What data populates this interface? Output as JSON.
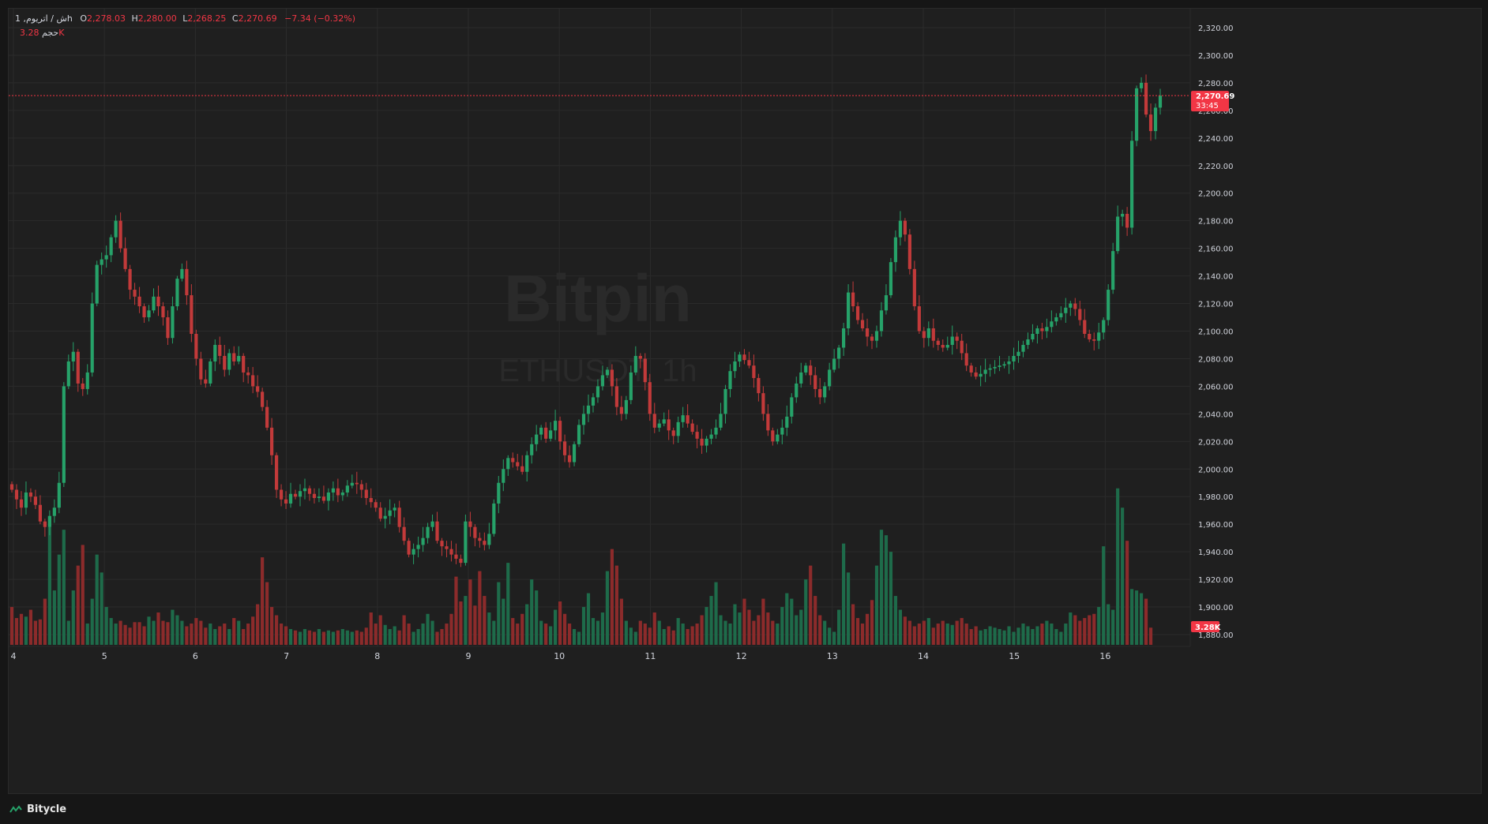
{
  "legend": {
    "symbol_interval": "1 ,ش / اتریومh",
    "open_label": "O",
    "open": "2,278.03",
    "high_label": "H",
    "high": "2,280.00",
    "low_label": "L",
    "low": "2,268.25",
    "close_label": "C",
    "close": "2,270.69",
    "change": "−7.34 (−0.32%)",
    "volume_label": "حجم",
    "volume": "3.28K"
  },
  "watermark": {
    "brand": "Bitpin",
    "symbol": "ETHUSDT, 1h"
  },
  "price_tag": {
    "price": "2,270.69",
    "countdown": "33:45"
  },
  "volume_tag": "3.28K",
  "footer": {
    "brand": "Bitycle"
  },
  "colors": {
    "up": "#26a269",
    "down": "#c23a3a",
    "up_vol": "#1e6b4a",
    "down_vol": "#8c2b2b",
    "tag": "#f23645",
    "grid": "#2b2b2b",
    "text": "#d1d4dc"
  },
  "chart_data": {
    "type": "candlestick",
    "symbol": "ETHUSDT",
    "interval": "1h",
    "y_ticks": [
      "2,320.00",
      "2,300.00",
      "2,280.00",
      "2,260.00",
      "2,240.00",
      "2,220.00",
      "2,200.00",
      "2,180.00",
      "2,160.00",
      "2,140.00",
      "2,120.00",
      "2,100.00",
      "2,080.00",
      "2,060.00",
      "2,040.00",
      "2,020.00",
      "2,000.00",
      "1,980.00",
      "1,960.00",
      "1,940.00",
      "1,920.00",
      "1,900.00",
      "1,880.00"
    ],
    "ylim": [
      1872,
      2330
    ],
    "x_ticks": [
      "4",
      "5",
      "6",
      "7",
      "8",
      "9",
      "10",
      "11",
      "12",
      "13",
      "14",
      "15",
      "16"
    ],
    "grid": true,
    "last_price": 2270.69,
    "closes": [
      1985,
      1978,
      1972,
      1983,
      1980,
      1974,
      1962,
      1958,
      1966,
      1972,
      1990,
      2060,
      2078,
      2085,
      2062,
      2058,
      2070,
      2120,
      2148,
      2152,
      2155,
      2168,
      2180,
      2160,
      2145,
      2130,
      2125,
      2118,
      2110,
      2115,
      2125,
      2118,
      2110,
      2095,
      2118,
      2138,
      2145,
      2126,
      2098,
      2080,
      2065,
      2062,
      2078,
      2090,
      2082,
      2072,
      2084,
      2078,
      2082,
      2070,
      2068,
      2060,
      2056,
      2045,
      2030,
      2010,
      1985,
      1978,
      1975,
      1982,
      1980,
      1984,
      1986,
      1982,
      1979,
      1980,
      1977,
      1983,
      1986,
      1981,
      1983,
      1988,
      1990,
      1989,
      1985,
      1979,
      1976,
      1972,
      1964,
      1966,
      1970,
      1972,
      1958,
      1948,
      1938,
      1942,
      1945,
      1950,
      1958,
      1962,
      1948,
      1944,
      1942,
      1938,
      1935,
      1932,
      1962,
      1958,
      1950,
      1948,
      1945,
      1953,
      1975,
      1990,
      2000,
      2008,
      2005,
      2002,
      1998,
      2010,
      2018,
      2025,
      2030,
      2022,
      2028,
      2035,
      2020,
      2010,
      2005,
      2018,
      2032,
      2040,
      2046,
      2052,
      2060,
      2068,
      2072,
      2060,
      2045,
      2040,
      2050,
      2070,
      2082,
      2080,
      2063,
      2040,
      2030,
      2033,
      2036,
      2028,
      2024,
      2034,
      2039,
      2033,
      2027,
      2022,
      2017,
      2022,
      2025,
      2030,
      2040,
      2058,
      2071,
      2078,
      2083,
      2079,
      2075,
      2066,
      2055,
      2040,
      2028,
      2020,
      2025,
      2030,
      2038,
      2052,
      2062,
      2070,
      2075,
      2068,
      2058,
      2052,
      2060,
      2072,
      2080,
      2088,
      2102,
      2128,
      2118,
      2108,
      2102,
      2096,
      2093,
      2100,
      2115,
      2126,
      2150,
      2168,
      2180,
      2170,
      2145,
      2118,
      2100,
      2095,
      2102,
      2093,
      2090,
      2088,
      2090,
      2096,
      2093,
      2084,
      2075,
      2070,
      2067,
      2069,
      2072,
      2073,
      2074,
      2075,
      2076,
      2078,
      2082,
      2085,
      2090,
      2094,
      2098,
      2102,
      2100,
      2103,
      2107,
      2110,
      2113,
      2117,
      2120,
      2116,
      2108,
      2098,
      2094,
      2093,
      2099,
      2108,
      2130,
      2158,
      2183,
      2185,
      2175,
      2238,
      2276,
      2280,
      2257,
      2245,
      2262,
      2270.69
    ],
    "volumes": [
      1900,
      1892,
      1895,
      1893,
      1898,
      1890,
      1891,
      1906,
      1958,
      1912,
      1938,
      1956,
      1890,
      1912,
      1930,
      1945,
      1888,
      1906,
      1938,
      1925,
      1900,
      1892,
      1888,
      1890,
      1887,
      1885,
      1889,
      1889,
      1886,
      1893,
      1890,
      1896,
      1890,
      1889,
      1898,
      1894,
      1890,
      1886,
      1888,
      1892,
      1890,
      1885,
      1888,
      1884,
      1886,
      1888,
      1884,
      1892,
      1890,
      1884,
      1888,
      1893,
      1902,
      1936,
      1918,
      1900,
      1894,
      1888,
      1886,
      1884,
      1883,
      1882,
      1884,
      1883,
      1882,
      1884,
      1882,
      1883,
      1882,
      1883,
      1884,
      1883,
      1882,
      1883,
      1882,
      1885,
      1896,
      1888,
      1894,
      1887,
      1884,
      1886,
      1883,
      1894,
      1888,
      1882,
      1884,
      1888,
      1895,
      1890,
      1882,
      1884,
      1888,
      1895,
      1922,
      1904,
      1908,
      1920,
      1901,
      1926,
      1908,
      1896,
      1890,
      1918,
      1906,
      1932,
      1892,
      1888,
      1895,
      1902,
      1920,
      1912,
      1890,
      1888,
      1886,
      1898,
      1904,
      1895,
      1888,
      1884,
      1882,
      1900,
      1910,
      1892,
      1890,
      1896,
      1926,
      1942,
      1930,
      1906,
      1890,
      1885,
      1882,
      1890,
      1888,
      1885,
      1896,
      1890,
      1884,
      1886,
      1883,
      1892,
      1888,
      1884,
      1886,
      1888,
      1894,
      1900,
      1908,
      1918,
      1894,
      1890,
      1888,
      1902,
      1896,
      1906,
      1898,
      1890,
      1894,
      1906,
      1896,
      1890,
      1888,
      1900,
      1910,
      1906,
      1894,
      1898,
      1920,
      1930,
      1908,
      1894,
      1890,
      1885,
      1882,
      1898,
      1946,
      1925,
      1902,
      1892,
      1888,
      1895,
      1905,
      1930,
      1956,
      1952,
      1940,
      1908,
      1898,
      1893,
      1890,
      1886,
      1888,
      1890,
      1892,
      1885,
      1888,
      1890,
      1888,
      1887,
      1890,
      1892,
      1888,
      1884,
      1886,
      1883,
      1884,
      1886,
      1885,
      1884,
      1883,
      1886,
      1882,
      1885,
      1888,
      1886,
      1884,
      1886,
      1888,
      1890,
      1888,
      1884,
      1882,
      1888,
      1896,
      1894,
      1890,
      1892,
      1894,
      1895,
      1900,
      1944,
      1902,
      1898,
      1986,
      1972,
      1948,
      1913,
      1912,
      1910,
      1906,
      1885
    ]
  }
}
